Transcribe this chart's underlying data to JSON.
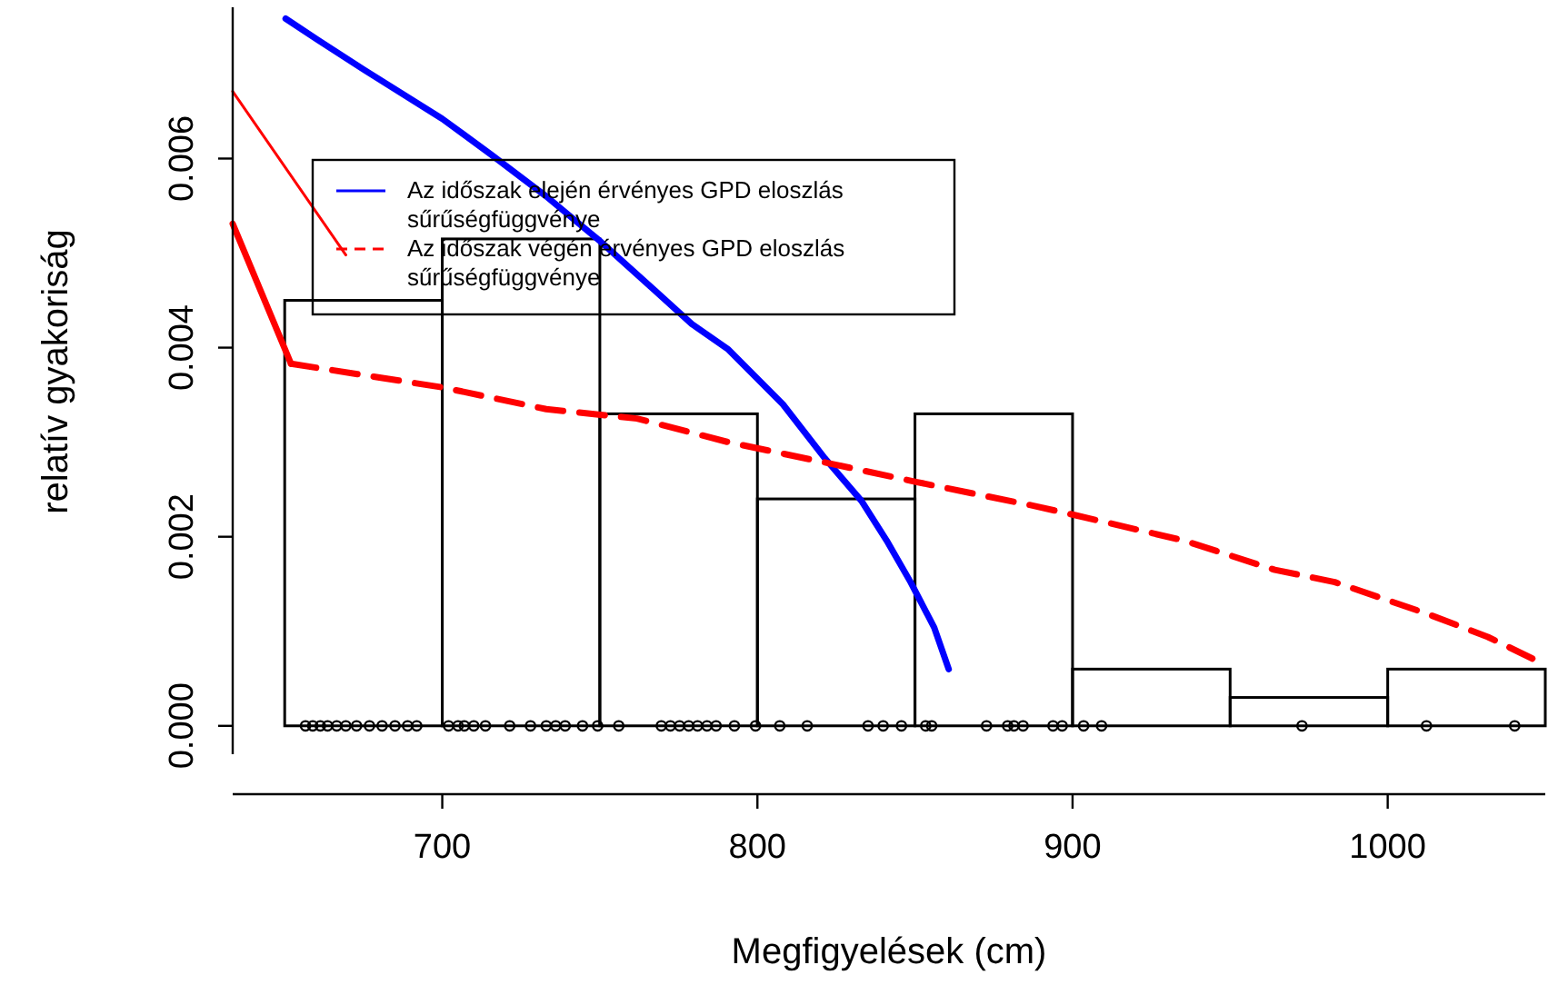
{
  "chart_data": {
    "type": "histogram",
    "xlabel": "Megfigyelések (cm)",
    "ylabel": "relatív gyakoriság",
    "bins": [
      650,
      700,
      750,
      800,
      850,
      900,
      950,
      1000,
      1050
    ],
    "values": [
      0.0045,
      0.00515,
      0.0033,
      0.0024,
      0.0033,
      0.0006,
      0.0003,
      0.0006
    ],
    "color": "#000000",
    "xlim": [
      633.5,
      1050
    ],
    "ylim": [
      -0.0003,
      0.0076
    ],
    "xticks": [
      700,
      800,
      900,
      1000
    ],
    "yticks": [
      {
        "value": 0,
        "label": "0.000"
      },
      0.002,
      0.004,
      0.006
    ],
    "grid": false,
    "legend": "top",
    "series": [
      {
        "type": "line",
        "name": "Az időszak elején érvényes GPD eloszlás sűrűségfüggvénye",
        "color": "#0000ff",
        "line_style": "solid",
        "x": [
          650.3,
          660.7,
          675.1,
          700,
          715.6,
          733,
          750.3,
          767.6,
          779.2,
          790.8,
          808.1,
          821.4,
          833,
          841,
          848.6,
          856.1,
          860.7
        ],
        "values": [
          0.00748,
          0.00725,
          0.00694,
          0.00642,
          0.00604,
          0.0056,
          0.00512,
          0.0046,
          0.00425,
          0.00398,
          0.0034,
          0.00283,
          0.00238,
          0.00196,
          0.00152,
          0.00104,
          0.0006
        ]
      },
      {
        "type": "line",
        "name": "Az időszak végén érvényes GPD eloszlás sűrűségfüggvénye",
        "color": "#ff0000",
        "line_style": "dashed",
        "x": [
          652,
          700,
          733,
          761.8,
          790.8,
          823.7,
          850.3,
          887.3,
          900.6,
          935.3,
          964.2,
          983.2,
          1012.1,
          1031.8,
          1049.7
        ],
        "values": [
          0.00383,
          0.00358,
          0.00335,
          0.00325,
          0.003,
          0.00277,
          0.00258,
          0.00233,
          0.00223,
          0.00196,
          0.00165,
          0.00152,
          0.00119,
          0.00094,
          0.00065
        ]
      },
      {
        "type": "line",
        "color": "#ff0000",
        "line_style": "solid",
        "x": [
          633.5,
          652
        ],
        "values": [
          0.00531,
          0.00383
        ]
      },
      {
        "type": "line",
        "color": "#ff0000",
        "line_style": "solid",
        "x": [
          633.5,
          669.4
        ],
        "values": [
          0.00671,
          0.00498
        ]
      },
      {
        "type": "scatter",
        "color": "#000000",
        "marker": "circle",
        "x": [
          656.6,
          658.9,
          661.3,
          663.6,
          666.5,
          669.4,
          672.8,
          676.9,
          680.9,
          685,
          689,
          691.9,
          702,
          705,
          707,
          710,
          713.7,
          721.4,
          728,
          733,
          736,
          739,
          744.5,
          749.3,
          756,
          769.5,
          772.4,
          775.3,
          778.2,
          781,
          784,
          786.9,
          792.7,
          799.4,
          807.1,
          815.8,
          835.1,
          839.9,
          845.7,
          853.4,
          855.3,
          872.7,
          879.4,
          881.4,
          884.3,
          893.8,
          896.7,
          903.5,
          909.2,
          972.8,
          1012.3,
          1040.3
        ],
        "values": [
          0,
          0,
          0,
          0,
          0,
          0,
          0,
          0,
          0,
          0,
          0,
          0,
          0,
          0,
          0,
          0,
          0,
          0,
          0,
          0,
          0,
          0,
          0,
          0,
          0,
          0,
          0,
          0,
          0,
          0,
          0,
          0,
          0,
          0,
          0,
          0,
          0,
          0,
          0,
          0,
          0,
          0,
          0,
          0,
          0,
          0,
          0,
          0,
          0,
          0,
          0,
          0
        ]
      }
    ]
  }
}
